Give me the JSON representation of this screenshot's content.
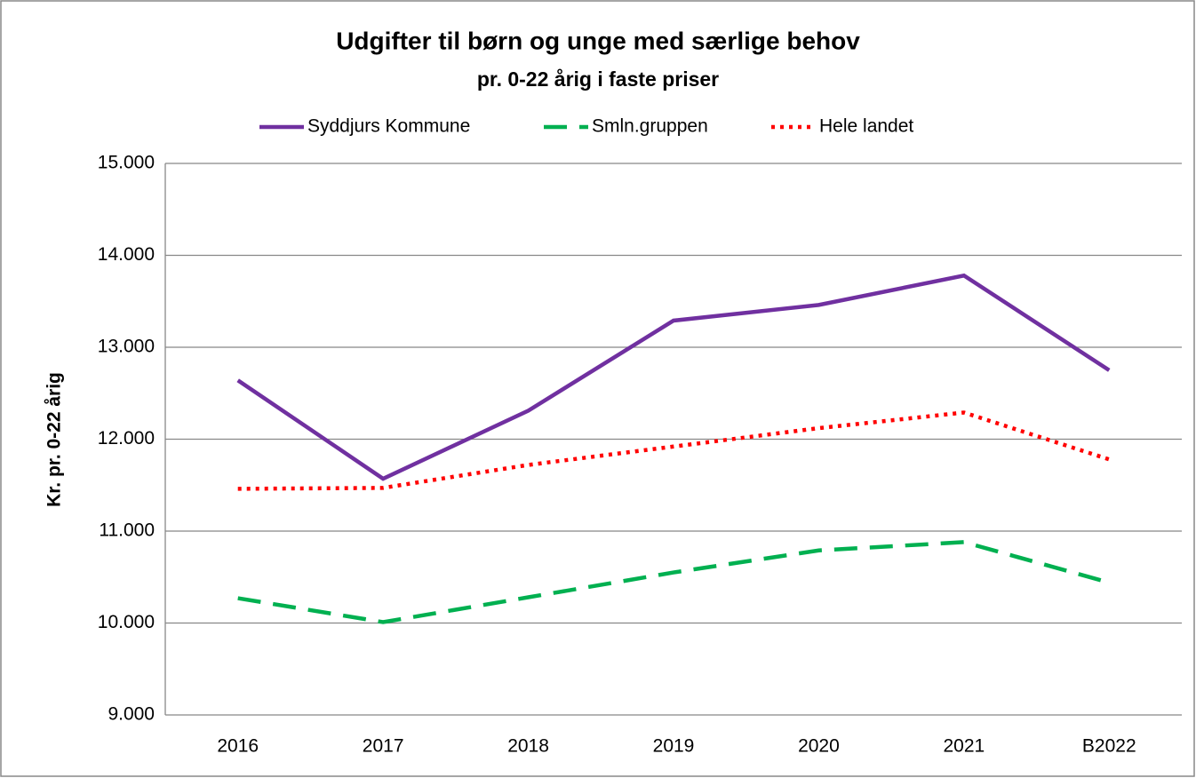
{
  "chart_data": {
    "type": "line",
    "title": "Udgifter til børn og unge med særlige behov",
    "subtitle": "pr. 0-22 årig i faste priser",
    "y_label": "Kr. pr. 0-22 årig",
    "categories": [
      "2016",
      "2017",
      "2018",
      "2019",
      "2020",
      "2021",
      "B2022"
    ],
    "series": [
      {
        "name": "Syddjurs Kommune",
        "color": "#7030a0",
        "dash": "solid",
        "values": [
          12640,
          11570,
          12310,
          13290,
          13460,
          13780,
          12750
        ]
      },
      {
        "name": "Smln.gruppen",
        "color": "#00b050",
        "dash": "dashed",
        "values": [
          10270,
          10010,
          10280,
          10550,
          10790,
          10880,
          10440
        ]
      },
      {
        "name": "Hele landet",
        "color": "#ff0000",
        "dash": "dotted",
        "values": [
          11460,
          11470,
          11720,
          11920,
          12120,
          12290,
          11780
        ]
      }
    ],
    "ylim": [
      9000,
      15000
    ],
    "yticks": [
      {
        "value": 9000,
        "label": "9.000"
      },
      {
        "value": 10000,
        "label": "10.000"
      },
      {
        "value": 11000,
        "label": "11.000"
      },
      {
        "value": 12000,
        "label": "12.000"
      },
      {
        "value": 13000,
        "label": "13.000"
      },
      {
        "value": 14000,
        "label": "14.000"
      },
      {
        "value": 15000,
        "label": "15.000"
      }
    ],
    "grid": true,
    "legend": "top"
  }
}
